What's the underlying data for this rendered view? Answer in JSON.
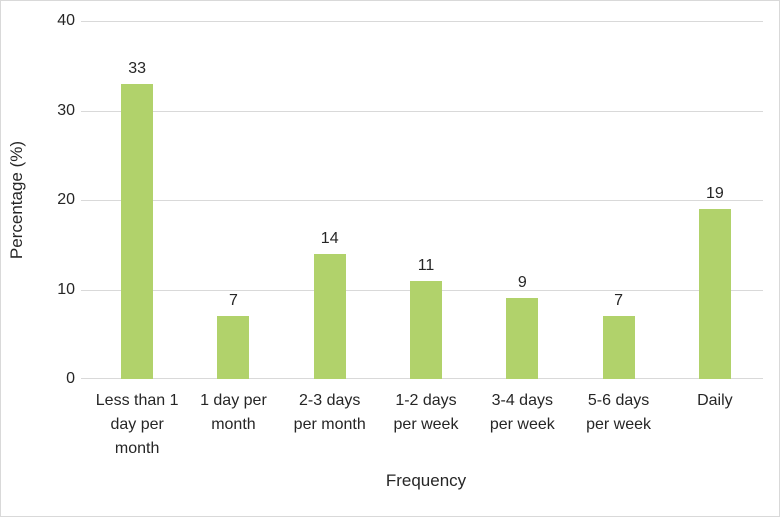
{
  "chart_data": {
    "type": "bar",
    "title": "",
    "xlabel": "Frequency",
    "ylabel": "Percentage (%)",
    "categories": [
      "Less than 1 day per month",
      "1 day per month",
      "2-3 days per month",
      "1-2 days per week",
      "3-4 days per week",
      "5-6 days per week",
      "Daily"
    ],
    "values": [
      33,
      7,
      14,
      11,
      9,
      7,
      19
    ],
    "data_labels": [
      "33",
      "7",
      "14",
      "11",
      "9",
      "7",
      "19"
    ],
    "ylim": [
      0,
      40
    ],
    "yticks": [
      0,
      10,
      20,
      30,
      40
    ],
    "grid": true,
    "legend": false,
    "colors": {
      "bar_fill": "#b1d26b",
      "gridline": "#d9d9d9",
      "axis_line": "#d9d9d9",
      "border": "#d9d9d9",
      "text": "#262626",
      "background": "#ffffff"
    }
  }
}
